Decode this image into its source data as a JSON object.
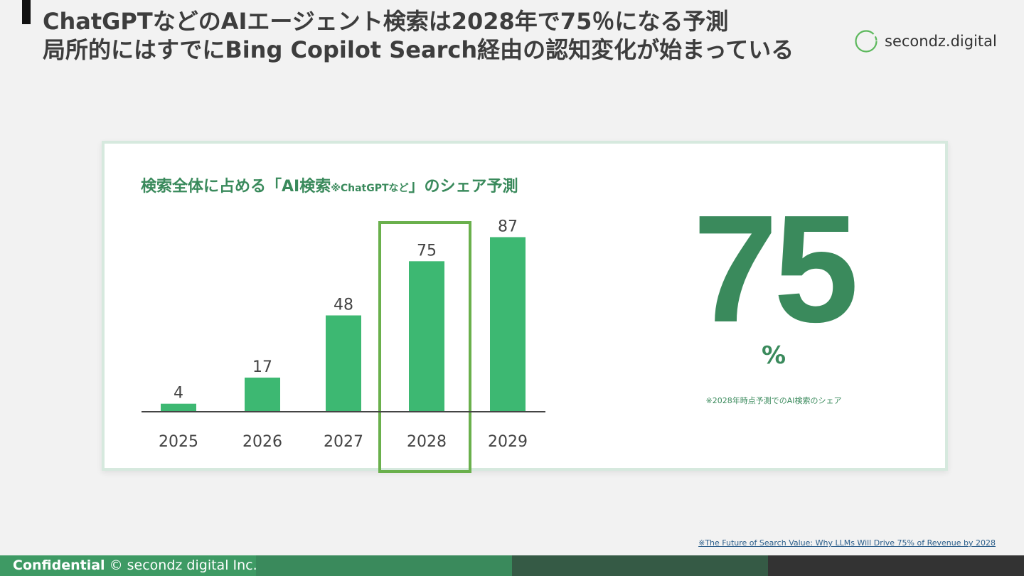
{
  "slide": {
    "title_line1": "ChatGPTなどのAIエージェント検索は2028年で75％になる予測",
    "title_line2": "局所的にはすでにBing Copilot Search経由の認知変化が始まっている"
  },
  "logo": {
    "text": "secondz.digital"
  },
  "chart_data": {
    "type": "bar",
    "title": "検索全体に占める「AI検索",
    "title_small": "※ChatGPTなど",
    "title_suffix": "」のシェア予測",
    "categories": [
      "2025",
      "2026",
      "2027",
      "2028",
      "2029"
    ],
    "values": [
      4,
      17,
      48,
      75,
      87
    ],
    "ylim": [
      0,
      90
    ],
    "highlight_category": "2028",
    "bar_color": "#3db872",
    "highlight_color": "#6ab04c",
    "grid": false,
    "xlabel": "",
    "ylabel": ""
  },
  "highlight": {
    "value": "75",
    "unit": "%",
    "note": "※2028年時点予測でのAI検索のシェア"
  },
  "source": {
    "text": "※The Future of Search Value: Why LLMs Will Drive 75% of Revenue by 2028"
  },
  "footer": {
    "label": "Confidential",
    "copyright": "© secondz digital Inc."
  }
}
